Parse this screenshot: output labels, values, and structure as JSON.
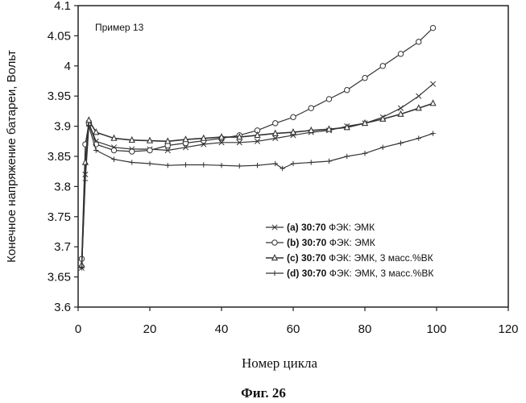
{
  "chart_data": {
    "type": "line",
    "title": "",
    "annotation": "Пример 13",
    "xlabel": "Номер цикла",
    "ylabel": "Конечное напряжение батареи, Вольт",
    "caption": "Фиг. 26",
    "xlim": [
      0,
      120
    ],
    "ylim": [
      3.6,
      4.1
    ],
    "xticks": [
      0,
      20,
      40,
      60,
      80,
      100,
      120
    ],
    "yticks": [
      3.6,
      3.65,
      3.7,
      3.75,
      3.8,
      3.85,
      3.9,
      3.95,
      4,
      4.05,
      4.1
    ],
    "xtick_labels": [
      "0",
      "20",
      "40",
      "60",
      "80",
      "100",
      "120"
    ],
    "ytick_labels": [
      "3.6",
      "3.65",
      "3.7",
      "3.75",
      "3.8",
      "3.85",
      "3.9",
      "3.95",
      "4",
      "4.05",
      "4.1"
    ],
    "grid": false,
    "legend_position": "bottom-right",
    "series": [
      {
        "name": "(a) 30:70 ФЭК: ЭМК",
        "label_bold": "(a) 30:70",
        "label_rest": " ФЭК: ЭМК",
        "marker": "x",
        "x": [
          1,
          2,
          3,
          5,
          10,
          15,
          20,
          25,
          30,
          35,
          40,
          45,
          50,
          55,
          60,
          65,
          70,
          75,
          80,
          85,
          90,
          95,
          99
        ],
        "values": [
          3.665,
          3.82,
          3.905,
          3.875,
          3.865,
          3.862,
          3.862,
          3.86,
          3.865,
          3.87,
          3.873,
          3.873,
          3.875,
          3.88,
          3.885,
          3.89,
          3.893,
          3.9,
          3.905,
          3.915,
          3.93,
          3.95,
          3.97
        ]
      },
      {
        "name": "(b) 30:70 ФЭК: ЭМК",
        "label_bold": "(b) 30:70",
        "label_rest": " ФЭК: ЭМК",
        "marker": "circle",
        "x": [
          1,
          2,
          3,
          5,
          10,
          15,
          20,
          25,
          30,
          35,
          40,
          45,
          50,
          55,
          60,
          65,
          70,
          75,
          80,
          85,
          90,
          95,
          99
        ],
        "values": [
          3.68,
          3.87,
          3.905,
          3.87,
          3.86,
          3.858,
          3.86,
          3.868,
          3.872,
          3.876,
          3.88,
          3.885,
          3.893,
          3.905,
          3.915,
          3.93,
          3.945,
          3.96,
          3.98,
          4.0,
          4.02,
          4.04,
          4.063
        ]
      },
      {
        "name": "(c) 30:70 ФЭК: ЭМК, 3 масс.%ВК",
        "label_bold": "(c) 30:70",
        "label_rest": " ФЭК: ЭМК, 3 масс.%ВК",
        "marker": "triangle",
        "x": [
          1,
          2,
          3,
          5,
          10,
          15,
          20,
          25,
          30,
          35,
          40,
          45,
          50,
          55,
          60,
          65,
          70,
          75,
          80,
          85,
          90,
          95,
          99
        ],
        "values": [
          3.67,
          3.84,
          3.91,
          3.89,
          3.88,
          3.877,
          3.876,
          3.875,
          3.878,
          3.88,
          3.882,
          3.882,
          3.885,
          3.888,
          3.89,
          3.893,
          3.895,
          3.898,
          3.905,
          3.912,
          3.92,
          3.93,
          3.938
        ]
      },
      {
        "name": "(d) 30:70 ФЭК: ЭМК, 3 масс.%ВК",
        "label_bold": "(d) 30:70",
        "label_rest": " ФЭК: ЭМК, 3 масс.%ВК",
        "marker": "plus",
        "x": [
          1,
          2,
          3,
          5,
          10,
          15,
          20,
          25,
          30,
          35,
          40,
          45,
          50,
          55,
          57,
          60,
          65,
          70,
          75,
          80,
          85,
          90,
          95,
          99
        ],
        "values": [
          3.665,
          3.81,
          3.9,
          3.86,
          3.845,
          3.84,
          3.838,
          3.835,
          3.836,
          3.836,
          3.835,
          3.834,
          3.835,
          3.838,
          3.83,
          3.838,
          3.84,
          3.842,
          3.85,
          3.855,
          3.865,
          3.872,
          3.88,
          3.888
        ]
      }
    ]
  }
}
